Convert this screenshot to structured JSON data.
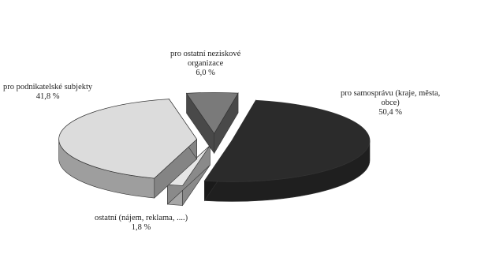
{
  "chart_data": {
    "type": "pie",
    "style": "3d-exploded",
    "title": "",
    "slices": [
      {
        "label": [
          "pro samosprávu (kraje, města,",
          "obce)"
        ],
        "value_label": "50,4 %",
        "value": 50.4,
        "color": "#2b2b2b"
      },
      {
        "label": [
          "ostatní  (nájem, reklama, ....)"
        ],
        "value_label": "1,8 %",
        "value": 1.8,
        "color": "#e6e6e6"
      },
      {
        "label": [
          "pro podnikatelské subjekty"
        ],
        "value_label": "41,8 %",
        "value": 41.8,
        "color": "#dcdcdc"
      },
      {
        "label": [
          "pro ostatní neziskové",
          "organizace"
        ],
        "value_label": "6,0 %",
        "value": 6.0,
        "color": "#7a7a7a"
      }
    ]
  }
}
